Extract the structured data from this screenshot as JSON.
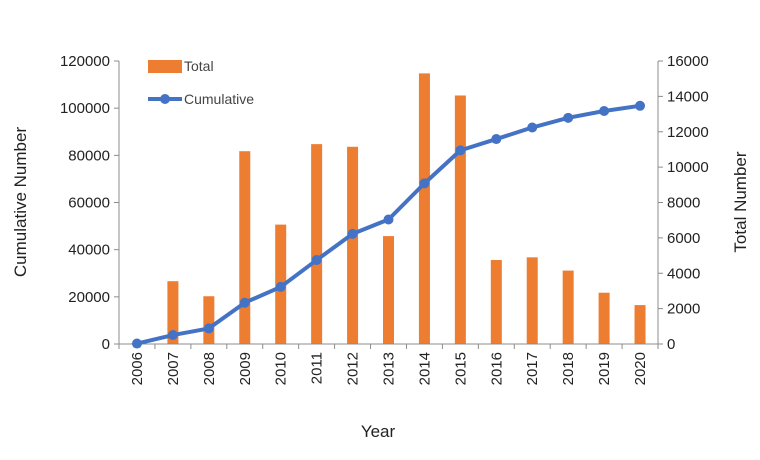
{
  "chart_data": {
    "type": "bar+line",
    "categories": [
      "2006",
      "2007",
      "2008",
      "2009",
      "2010",
      "2011",
      "2012",
      "2013",
      "2014",
      "2015",
      "2016",
      "2017",
      "2018",
      "2019",
      "2020"
    ],
    "series": [
      {
        "name": "Total",
        "type": "bar",
        "axis": "right",
        "color": "#ED7D31",
        "values": [
          50,
          3550,
          2700,
          10900,
          6750,
          11300,
          11150,
          6100,
          15300,
          14050,
          4750,
          4900,
          4150,
          2900,
          2200
        ]
      },
      {
        "name": "Cumulative",
        "type": "line",
        "axis": "left",
        "color": "#4472C4",
        "values": [
          200,
          3800,
          6600,
          17500,
          24200,
          35600,
          46700,
          52800,
          68100,
          82100,
          86900,
          91800,
          95900,
          98800,
          101000
        ]
      }
    ],
    "xlabel": "Year",
    "ylabel_left": "Cumulative Number",
    "ylabel_right": "Total Number",
    "ylim_left": [
      0,
      120000
    ],
    "ylim_right": [
      0,
      16000
    ],
    "yticks_left": [
      "0",
      "20000",
      "40000",
      "60000",
      "80000",
      "100000",
      "120000"
    ],
    "yticks_right": [
      "0",
      "2000",
      "4000",
      "6000",
      "8000",
      "10000",
      "12000",
      "14000",
      "16000"
    ],
    "legend": "top-left",
    "grid": false
  }
}
